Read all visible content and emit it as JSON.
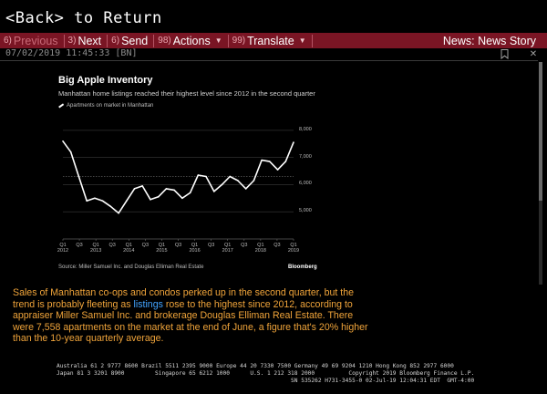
{
  "nav": {
    "back_label": "<Back> to Return"
  },
  "toolbar": {
    "previous": {
      "num": "6)",
      "label": "Previous"
    },
    "next": {
      "num": "3)",
      "label": "Next"
    },
    "send": {
      "num": "6)",
      "label": "Send"
    },
    "actions": {
      "num": "98)",
      "label": "Actions"
    },
    "translate": {
      "num": "99)",
      "label": "Translate"
    },
    "news_label": "News: News Story"
  },
  "story_meta": {
    "timestamp": "07/02/2019 11:45:33 [BN]"
  },
  "icons": {
    "bookmark": "bookmark-icon",
    "close": "close-icon"
  },
  "chart_data": {
    "type": "line",
    "title": "Big Apple Inventory",
    "subtitle": "Manhattan home listings reached their highest level since 2012 in the second quarter",
    "legend": [
      "Apartments on market in Manhattan"
    ],
    "source": "Source: Miller Samuel Inc. and Douglas Elliman Real Estate",
    "brand": "Bloomberg",
    "ylim": [
      4000,
      8500
    ],
    "yticks": [
      "8,000",
      "7,000",
      "6,000",
      "5,000"
    ],
    "xticks": [
      {
        "q": "Q1",
        "y": "2012"
      },
      {
        "q": "Q3",
        "y": ""
      },
      {
        "q": "Q1",
        "y": "2013"
      },
      {
        "q": "Q3",
        "y": ""
      },
      {
        "q": "Q1",
        "y": "2014"
      },
      {
        "q": "Q3",
        "y": ""
      },
      {
        "q": "Q1",
        "y": "2015"
      },
      {
        "q": "Q3",
        "y": ""
      },
      {
        "q": "Q1",
        "y": "2016"
      },
      {
        "q": "Q3",
        "y": ""
      },
      {
        "q": "Q1",
        "y": "2017"
      },
      {
        "q": "Q3",
        "y": ""
      },
      {
        "q": "Q1",
        "y": "2018"
      },
      {
        "q": "Q3",
        "y": ""
      },
      {
        "q": "Q1",
        "y": "2019"
      }
    ],
    "series": [
      {
        "name": "Apartments on market in Manhattan",
        "values": [
          7600,
          7200,
          6300,
          5400,
          5500,
          5400,
          5200,
          4950,
          5400,
          5850,
          5950,
          5450,
          5550,
          5850,
          5800,
          5500,
          5700,
          6350,
          6300,
          5750,
          6000,
          6300,
          6150,
          5850,
          6150,
          6900,
          6850,
          6550,
          6850,
          7558
        ]
      }
    ],
    "reference_line": 6300
  },
  "article": {
    "text_before": "Sales of Manhattan co-ops and condos perked up in the second quarter, but the trend is probably fleeting as ",
    "link": "listings",
    "text_after": " rose to the highest since 2012, according to appraiser Miller Samuel Inc. and brokerage Douglas Elliman Real Estate. There were 7,558 apartments on the market at the end of June, a figure that's 20% higher than the 10-year quarterly average."
  },
  "footer": {
    "line1": "Australia 61 2 9777 8600 Brazil 5511 2395 9000 Europe 44 20 7330 7500 Germany 49 69 9204 1210 Hong Kong 852 2977 6000",
    "line2": "Japan 81 3 3201 8900         Singapore 65 6212 1000      U.S. 1 212 318 2000          Copyright 2019 Bloomberg Finance L.P.",
    "line3": "                                                                     SN 535262 H731-3455-0 02-Jul-19 12:04:31 EDT  GMT-4:00"
  }
}
